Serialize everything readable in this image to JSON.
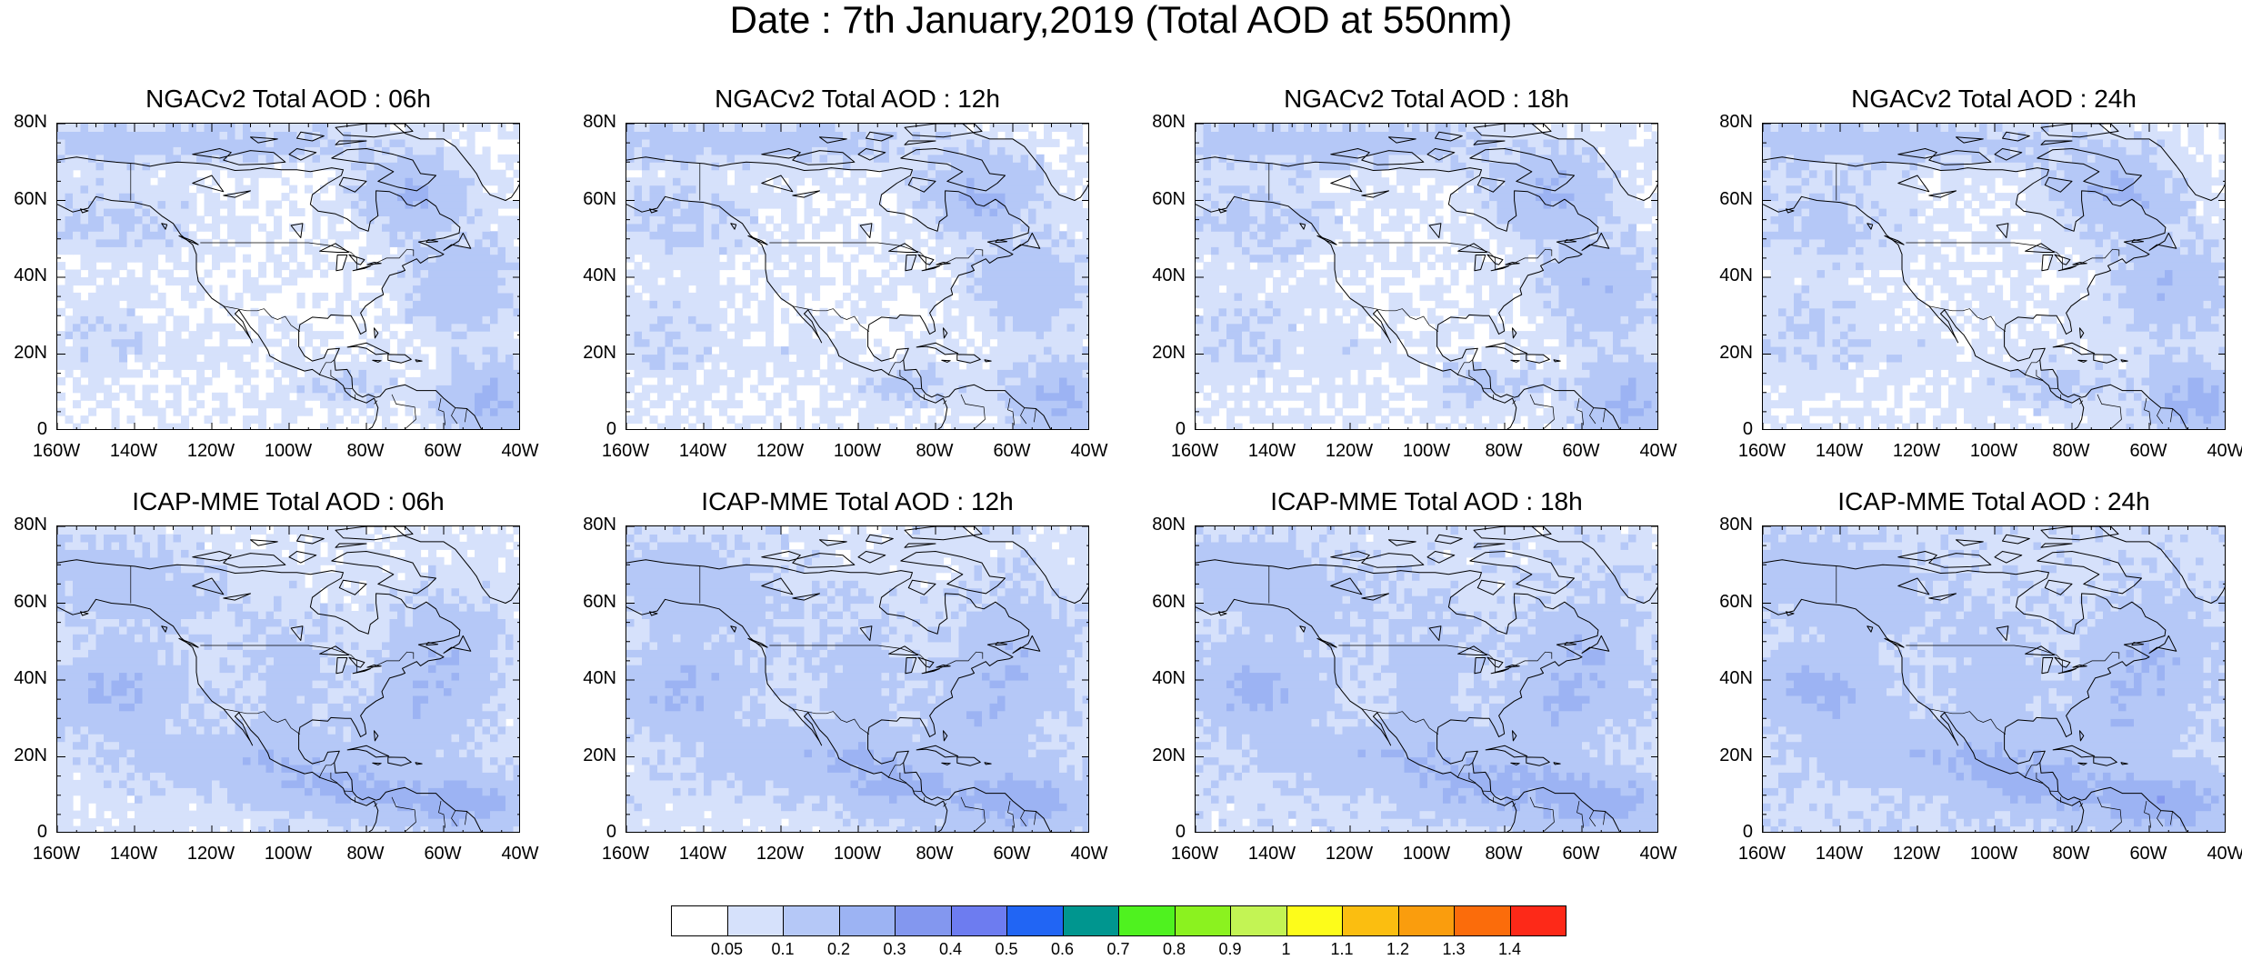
{
  "page": {
    "title": "Date : 7th January,2019 (Total AOD at 550nm)"
  },
  "map_data": {
    "panels": [
      {
        "title": "NGACv2 Total AOD : 06h"
      },
      {
        "title": "NGACv2 Total AOD : 12h"
      },
      {
        "title": "NGACv2 Total AOD : 18h"
      },
      {
        "title": "NGACv2 Total AOD : 24h"
      },
      {
        "title": "ICAP-MME Total AOD : 06h"
      },
      {
        "title": "ICAP-MME Total AOD : 12h"
      },
      {
        "title": "ICAP-MME Total AOD : 18h"
      },
      {
        "title": "ICAP-MME Total AOD : 24h"
      }
    ],
    "lat_ticks": [
      "80N",
      "60N",
      "40N",
      "20N",
      "0"
    ],
    "lon_ticks": [
      "160W",
      "140W",
      "120W",
      "100W",
      "80W",
      "60W",
      "40W"
    ],
    "lat_range": [
      0,
      80
    ],
    "lon_range": [
      -160,
      -40
    ]
  },
  "colorbar": {
    "colors": [
      "#ffffff",
      "#d6e1fb",
      "#b5c8f7",
      "#9cb3f3",
      "#8397ef",
      "#6d7cf0",
      "#2165f4",
      "#00968f",
      "#4ff21f",
      "#8bf21f",
      "#c3f454",
      "#fdfc1a",
      "#fbbe10",
      "#fa9d0d",
      "#fb6c0b",
      "#fd2918"
    ],
    "labels": [
      "0.05",
      "0.1",
      "0.2",
      "0.3",
      "0.4",
      "0.5",
      "0.6",
      "0.7",
      "0.8",
      "0.9",
      "1",
      "1.1",
      "1.2",
      "1.3",
      "1.4"
    ]
  }
}
